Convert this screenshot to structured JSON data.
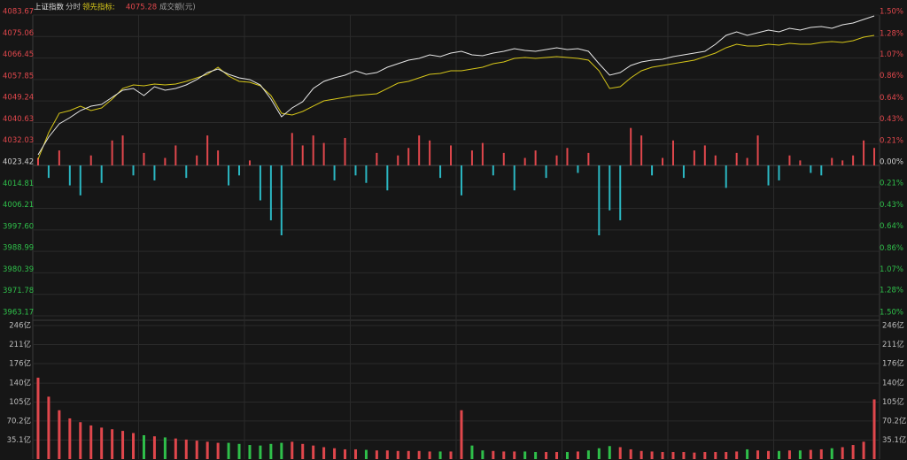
{
  "chart_data": {
    "type": "intraday",
    "title": "上证指数",
    "period": "分时",
    "indicator_label": "领先指标:",
    "indicator_value": 4075.28,
    "volume_title": "成交额(元)",
    "rise_color": "#e0474c",
    "fall_color": "#2fbf4a",
    "bar_fall_color": "#2bb7c2",
    "grid": true,
    "ylim": [
      3963.17,
      4083.67
    ],
    "yticks": [
      4083.67,
      4075.06,
      4066.45,
      4057.85,
      4049.24,
      4040.63,
      4032.03,
      4023.42,
      4014.81,
      4006.21,
      {
        "value": 3997.6,
        "label": "3997.60"
      },
      3988.99,
      3980.39,
      3971.78,
      3963.17
    ],
    "y2lim": [
      -1.5,
      1.5
    ],
    "y2ticks": [
      {
        "value": 1.5,
        "label": "1.50%"
      },
      {
        "value": 1.28,
        "label": "1.28%"
      },
      {
        "value": 1.07,
        "label": "1.07%"
      },
      {
        "value": 0.86,
        "label": "0.86%"
      },
      {
        "value": 0.64,
        "label": "0.64%"
      },
      {
        "value": 0.43,
        "label": "0.43%"
      },
      {
        "value": 0.21,
        "label": "0.21%"
      },
      {
        "value": 0,
        "label": "0.00%"
      },
      {
        "value": -0.21,
        "label": "0.21%"
      },
      {
        "value": -0.43,
        "label": "0.43%"
      },
      {
        "value": -0.64,
        "label": "0.64%"
      },
      {
        "value": -0.86,
        "label": "0.86%"
      },
      {
        "value": -1.07,
        "label": "1.07%"
      },
      {
        "value": -1.28,
        "label": "1.28%"
      },
      {
        "value": -1.5,
        "label": "1.50%"
      }
    ],
    "price": {
      "color": "#e6e6e6",
      "values": [
        4027.67,
        4034.76,
        4040.08,
        4042.56,
        4045.39,
        4047.17,
        4047.88,
        4050.71,
        4053.55,
        4054.25,
        4051.42,
        4054.96,
        4053.55,
        4054.25,
        4055.67,
        4057.8,
        4060.63,
        4062.05,
        4059.93,
        4058.51,
        4057.8,
        4055.67,
        4050.0,
        4042.91,
        4046.46,
        4048.94,
        4054.25,
        4057.09,
        4058.51,
        4059.57,
        4061.34,
        4059.93,
        4060.63,
        4062.76,
        4064.18,
        4065.6,
        4066.3,
        4067.72,
        4067.01,
        4068.43,
        4069.14,
        4067.72,
        4067.37,
        4068.43,
        4069.14,
        4070.2,
        4069.49,
        4069.14,
        4069.85,
        4070.56,
        4069.85,
        4070.2,
        4069.14,
        4064.18,
        4059.57,
        4060.63,
        4063.47,
        4064.89,
        4065.6,
        4065.95,
        4067.01,
        4067.72,
        4068.43,
        4069.14,
        4071.97,
        4075.52,
        4076.94,
        4075.52,
        4076.58,
        4077.65,
        4076.94,
        4078.35,
        4077.65,
        4078.71,
        4079.06,
        4078.35,
        4079.77,
        4080.48,
        4081.9,
        4083.32
      ]
    },
    "indicator": {
      "color": "#d6c619",
      "values": [
        4025.9,
        4036.53,
        4044.33,
        4045.39,
        4047.17,
        4045.39,
        4046.46,
        4050.0,
        4054.25,
        4055.67,
        4055.32,
        4056.03,
        4055.67,
        4056.03,
        4057.09,
        4058.51,
        4059.93,
        4062.76,
        4059.22,
        4057.09,
        4056.74,
        4055.32,
        4051.42,
        4044.33,
        4043.62,
        4045.04,
        4047.17,
        4049.29,
        4050.0,
        4050.71,
        4051.42,
        4051.77,
        4052.13,
        4054.25,
        4056.38,
        4057.09,
        4058.51,
        4059.93,
        4060.28,
        4061.34,
        4061.34,
        4062.05,
        4062.76,
        4064.18,
        4064.89,
        4066.3,
        4066.66,
        4066.3,
        4066.66,
        4067.01,
        4066.66,
        4066.3,
        4065.6,
        4061.34,
        4054.25,
        4054.96,
        4058.51,
        4061.34,
        4062.76,
        4063.47,
        4064.18,
        4064.89,
        4065.6,
        4067.01,
        4068.43,
        4070.56,
        4071.97,
        4071.27,
        4071.27,
        4071.97,
        4071.62,
        4072.33,
        4071.97,
        4071.97,
        4072.68,
        4073.04,
        4072.68,
        4073.39,
        4074.81,
        4075.52
      ]
    },
    "bars": {
      "values": [
        3,
        -5,
        6,
        -8,
        -12,
        4,
        -7,
        10,
        12,
        -4,
        5,
        -6,
        3,
        8,
        -5,
        4,
        12,
        6,
        -8,
        -4,
        2,
        -14,
        -22,
        -28,
        13,
        8,
        12,
        9,
        -6,
        11,
        -4,
        -7,
        5,
        -10,
        4,
        7,
        12,
        10,
        -5,
        8,
        -12,
        6,
        9,
        -4,
        5,
        -10,
        3,
        6,
        -5,
        4,
        7,
        -3,
        5,
        -28,
        -18,
        -22,
        15,
        12,
        -4,
        3,
        10,
        -5,
        6,
        8,
        4,
        -9,
        5,
        3,
        12,
        -8,
        -6,
        4,
        2,
        -3,
        -4,
        3,
        2,
        4,
        10,
        7
      ]
    },
    "volume": {
      "ylim": [
        0,
        246
      ],
      "yticks": [
        {
          "value": 246,
          "label": "246亿"
        },
        {
          "value": 211,
          "label": "211亿"
        },
        {
          "value": 176,
          "label": "176亿"
        },
        {
          "value": 140,
          "label": "140亿"
        },
        {
          "value": 105,
          "label": "105亿"
        },
        {
          "value": 70.2,
          "label": "70.2亿"
        },
        {
          "value": 35.1,
          "label": "35.1亿"
        }
      ],
      "values": [
        150,
        115,
        90,
        75,
        68,
        62,
        58,
        55,
        52,
        48,
        44,
        42,
        40,
        38,
        36,
        34,
        32,
        30,
        30,
        28,
        26,
        25,
        28,
        30,
        32,
        28,
        25,
        22,
        20,
        18,
        18,
        17,
        16,
        16,
        15,
        15,
        15,
        14,
        14,
        14,
        90,
        25,
        16,
        15,
        14,
        14,
        14,
        13,
        13,
        13,
        13,
        14,
        16,
        20,
        24,
        22,
        18,
        15,
        14,
        13,
        13,
        13,
        12,
        13,
        13,
        13,
        14,
        18,
        16,
        15,
        15,
        16,
        16,
        17,
        18,
        20,
        22,
        26,
        32,
        110
      ]
    }
  }
}
